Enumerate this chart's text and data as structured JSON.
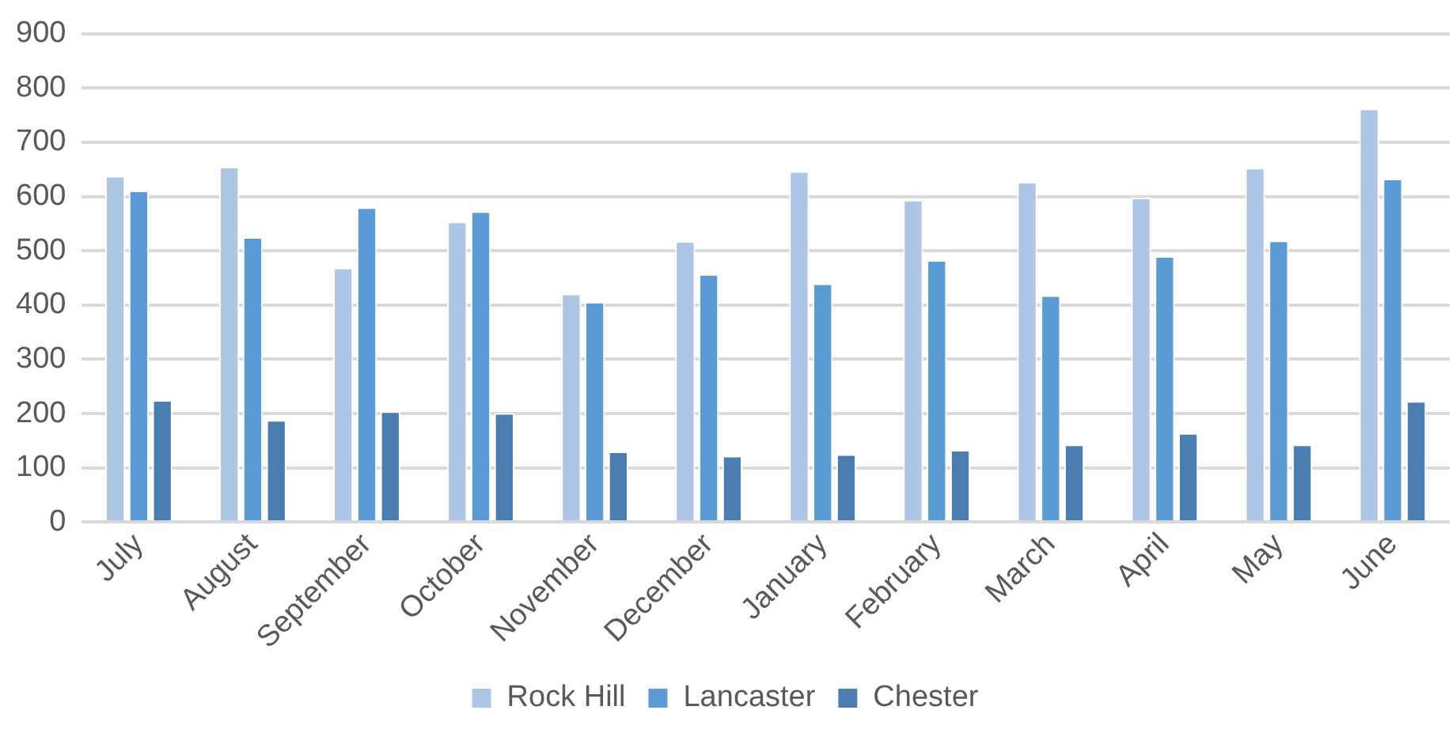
{
  "chart_data": {
    "type": "bar",
    "categories": [
      "July",
      "August",
      "September",
      "October",
      "November",
      "December",
      "January",
      "February",
      "March",
      "April",
      "May",
      "June"
    ],
    "series": [
      {
        "name": "Rock Hill",
        "color": "#adc6e5",
        "values": [
          638,
          655,
          469,
          554,
          421,
          518,
          647,
          594,
          627,
          598,
          653,
          762
        ]
      },
      {
        "name": "Lancaster",
        "color": "#5b9bd5",
        "values": [
          611,
          525,
          580,
          573,
          406,
          457,
          440,
          483,
          418,
          490,
          519,
          633
        ]
      },
      {
        "name": "Chester",
        "color": "#4a7eb0",
        "values": [
          225,
          188,
          204,
          201,
          130,
          122,
          125,
          133,
          143,
          164,
          143,
          223
        ]
      }
    ],
    "ylim": [
      0,
      900
    ],
    "yticks": [
      0,
      100,
      200,
      300,
      400,
      500,
      600,
      700,
      800,
      900
    ],
    "grid": "y",
    "legend": "bottom"
  }
}
